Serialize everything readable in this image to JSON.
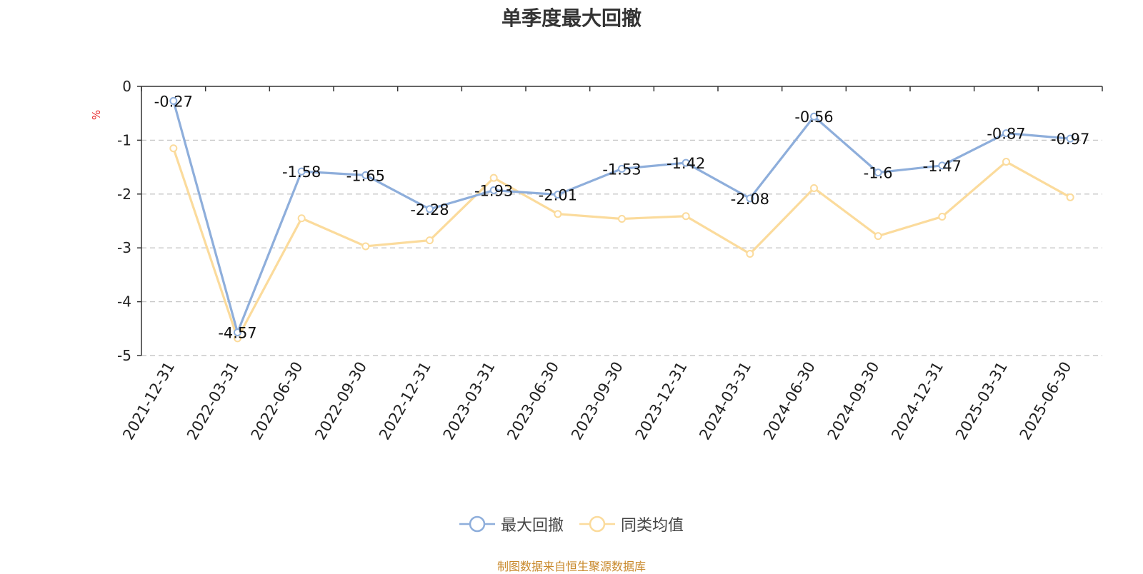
{
  "title": "单季度最大回撤",
  "unit": "%",
  "source": "制图数据来自恒生聚源数据库",
  "chart_data": {
    "type": "line",
    "title": "单季度最大回撤",
    "ylabel": "%",
    "ylim": [
      -5,
      0
    ],
    "yticks": [
      0,
      -1,
      -2,
      -3,
      -4,
      -5
    ],
    "grid": true,
    "legend_position": "bottom",
    "categories": [
      "2021-12-31",
      "2022-03-31",
      "2022-06-30",
      "2022-09-30",
      "2022-12-31",
      "2023-03-31",
      "2023-06-30",
      "2023-09-30",
      "2023-12-31",
      "2024-03-31",
      "2024-06-30",
      "2024-09-30",
      "2024-12-31",
      "2025-03-31",
      "2025-06-30"
    ],
    "series": [
      {
        "name": "最大回撤",
        "color": "#8eaedb",
        "show_labels": true,
        "values": [
          -0.27,
          -4.57,
          -1.58,
          -1.65,
          -2.28,
          -1.93,
          -2.01,
          -1.53,
          -1.42,
          -2.08,
          -0.56,
          -1.6,
          -1.47,
          -0.87,
          -0.97
        ]
      },
      {
        "name": "同类均值",
        "color": "#fbdb9c",
        "show_labels": false,
        "values": [
          -1.15,
          -4.68,
          -2.45,
          -2.97,
          -2.86,
          -1.7,
          -2.37,
          -2.46,
          -2.41,
          -3.11,
          -1.89,
          -2.78,
          -2.42,
          -1.4,
          -2.06
        ]
      }
    ]
  }
}
